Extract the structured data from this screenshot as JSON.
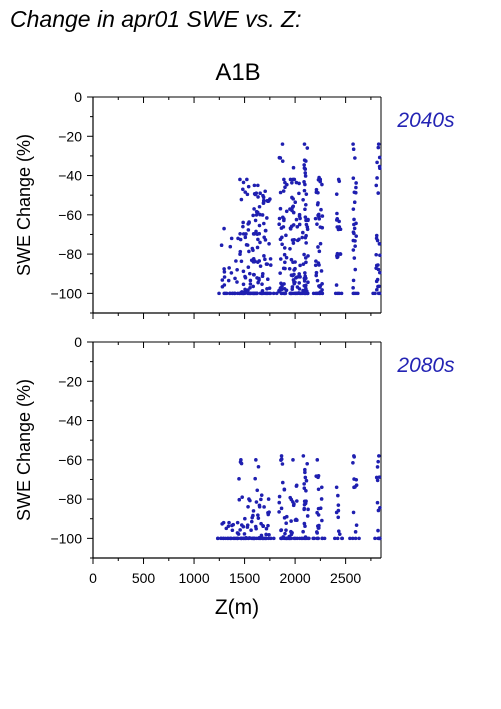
{
  "page": {
    "title": "Change in apr01 SWE vs. Z:",
    "scenario": "A1B"
  },
  "colors": {
    "points": "#1f1fb0",
    "axes": "#000000",
    "period_label": "#2424b4"
  },
  "chart_data": [
    {
      "type": "scatter",
      "period": "2040s",
      "ylabel": "SWE Change (%)",
      "xlabel": "",
      "xlim": [
        0,
        2850
      ],
      "ylim": [
        -110,
        0
      ],
      "yticks": [
        0,
        -20,
        -40,
        -60,
        -80,
        -100
      ],
      "xticks": [
        0,
        500,
        1000,
        1500,
        2000,
        2500
      ],
      "columns": [
        {
          "x": 1290,
          "ymin": -100,
          "ymax": -67,
          "n": 9
        },
        {
          "x": 1360,
          "ymin": -100,
          "ymax": -72,
          "n": 6
        },
        {
          "x": 1420,
          "ymin": -100,
          "ymax": -72,
          "n": 6
        },
        {
          "x": 1470,
          "ymin": -100,
          "ymax": -42,
          "n": 15
        },
        {
          "x": 1500,
          "ymin": -100,
          "ymax": -47,
          "n": 14
        },
        {
          "x": 1540,
          "ymin": -100,
          "ymax": -42,
          "n": 16
        },
        {
          "x": 1580,
          "ymin": -100,
          "ymax": -45,
          "n": 17
        },
        {
          "x": 1620,
          "ymin": -100,
          "ymax": -45,
          "n": 18
        },
        {
          "x": 1660,
          "ymin": -100,
          "ymax": -49,
          "n": 17
        },
        {
          "x": 1700,
          "ymin": -100,
          "ymax": -48,
          "n": 16
        },
        {
          "x": 1740,
          "ymin": -100,
          "ymax": -52,
          "n": 14
        },
        {
          "x": 1860,
          "ymin": -100,
          "ymax": -24,
          "n": 24
        },
        {
          "x": 1900,
          "ymin": -100,
          "ymax": -42,
          "n": 20
        },
        {
          "x": 1960,
          "ymin": -100,
          "ymax": -42,
          "n": 20
        },
        {
          "x": 2000,
          "ymin": -100,
          "ymax": -36,
          "n": 21
        },
        {
          "x": 2030,
          "ymin": -100,
          "ymax": -44,
          "n": 19
        },
        {
          "x": 2090,
          "ymin": -100,
          "ymax": -24,
          "n": 25
        },
        {
          "x": 2110,
          "ymin": -100,
          "ymax": -26,
          "n": 24
        },
        {
          "x": 2220,
          "ymin": -100,
          "ymax": -41,
          "n": 21
        },
        {
          "x": 2250,
          "ymin": -100,
          "ymax": -42,
          "n": 20
        },
        {
          "x": 2430,
          "ymin": -100,
          "ymax": -42,
          "n": 19
        },
        {
          "x": 2590,
          "ymin": -100,
          "ymax": -24,
          "n": 26
        },
        {
          "x": 2820,
          "ymin": -100,
          "ymax": -24,
          "n": 26
        }
      ]
    },
    {
      "type": "scatter",
      "period": "2080s",
      "ylabel": "SWE Change (%)",
      "xlabel": "Z(m)",
      "xlim": [
        0,
        2850
      ],
      "ylim": [
        -110,
        0
      ],
      "yticks": [
        0,
        -20,
        -40,
        -60,
        -80,
        -100
      ],
      "xticks": [
        0,
        500,
        1000,
        1500,
        2000,
        2500
      ],
      "columns": [
        {
          "x": 1280,
          "ymin": -100,
          "ymax": -92,
          "n": 4
        },
        {
          "x": 1330,
          "ymin": -100,
          "ymax": -92,
          "n": 4
        },
        {
          "x": 1380,
          "ymin": -100,
          "ymax": -93,
          "n": 4
        },
        {
          "x": 1430,
          "ymin": -100,
          "ymax": -92,
          "n": 4
        },
        {
          "x": 1460,
          "ymin": -100,
          "ymax": -60,
          "n": 9
        },
        {
          "x": 1500,
          "ymin": -100,
          "ymax": -90,
          "n": 5
        },
        {
          "x": 1540,
          "ymin": -100,
          "ymax": -80,
          "n": 7
        },
        {
          "x": 1580,
          "ymin": -100,
          "ymax": -86,
          "n": 6
        },
        {
          "x": 1620,
          "ymin": -100,
          "ymax": -60,
          "n": 10
        },
        {
          "x": 1650,
          "ymin": -100,
          "ymax": -78,
          "n": 8
        },
        {
          "x": 1700,
          "ymin": -100,
          "ymax": -84,
          "n": 7
        },
        {
          "x": 1740,
          "ymin": -100,
          "ymax": -80,
          "n": 7
        },
        {
          "x": 1860,
          "ymin": -100,
          "ymax": -58,
          "n": 12
        },
        {
          "x": 1900,
          "ymin": -100,
          "ymax": -75,
          "n": 9
        },
        {
          "x": 1960,
          "ymin": -100,
          "ymax": -60,
          "n": 11
        },
        {
          "x": 2000,
          "ymin": -100,
          "ymax": -73,
          "n": 9
        },
        {
          "x": 2090,
          "ymin": -100,
          "ymax": -58,
          "n": 12
        },
        {
          "x": 2110,
          "ymin": -100,
          "ymax": -62,
          "n": 11
        },
        {
          "x": 2220,
          "ymin": -100,
          "ymax": -60,
          "n": 11
        },
        {
          "x": 2250,
          "ymin": -100,
          "ymax": -74,
          "n": 9
        },
        {
          "x": 2430,
          "ymin": -100,
          "ymax": -74,
          "n": 9
        },
        {
          "x": 2590,
          "ymin": -100,
          "ymax": -58,
          "n": 12
        },
        {
          "x": 2820,
          "ymin": -100,
          "ymax": -58,
          "n": 12
        }
      ]
    }
  ]
}
